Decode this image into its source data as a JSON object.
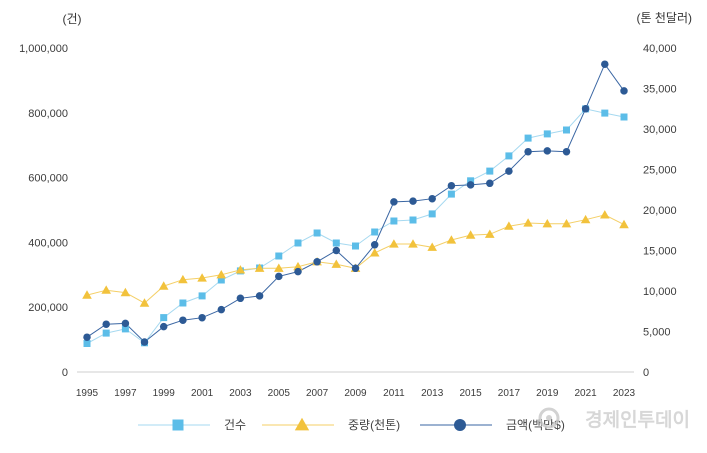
{
  "chart_data": {
    "type": "line",
    "x": [
      1995,
      1996,
      1997,
      1998,
      1999,
      2000,
      2001,
      2002,
      2003,
      2004,
      2005,
      2006,
      2007,
      2008,
      2009,
      2010,
      2011,
      2012,
      2013,
      2014,
      2015,
      2016,
      2017,
      2018,
      2019,
      2020,
      2021,
      2022,
      2023
    ],
    "xlim": [
      1995,
      2023
    ],
    "x_tick_labels": [
      "1995",
      "1997",
      "1999",
      "2001",
      "2003",
      "2005",
      "2007",
      "2009",
      "2011",
      "2013",
      "2015",
      "2017",
      "2019",
      "2021",
      "2023"
    ],
    "y_axis_left": {
      "title": "(건)",
      "range": [
        0,
        1000000
      ],
      "ticks": [
        {
          "value": 0,
          "label": "0"
        },
        {
          "value": 200000,
          "label": "200,000"
        },
        {
          "value": 400000,
          "label": "400,000"
        },
        {
          "value": 600000,
          "label": "600,000"
        },
        {
          "value": 800000,
          "label": "800,000"
        },
        {
          "value": 1000000,
          "label": "1,000,000"
        }
      ]
    },
    "y_axis_right": {
      "title": "(톤 천달러)",
      "range": [
        0,
        40000
      ],
      "ticks": [
        {
          "value": 0,
          "label": "0"
        },
        {
          "value": 5000,
          "label": "5,000"
        },
        {
          "value": 10000,
          "label": "10,000"
        },
        {
          "value": 15000,
          "label": "15,000"
        },
        {
          "value": 20000,
          "label": "20,000"
        },
        {
          "value": 25000,
          "label": "25,000"
        },
        {
          "value": 30000,
          "label": "30,000"
        },
        {
          "value": 35000,
          "label": "35,000"
        },
        {
          "value": 40000,
          "label": "40,000"
        }
      ]
    },
    "grid": false,
    "legend_position": "bottom",
    "series": [
      {
        "name": "건수",
        "axis": "left",
        "marker": "square",
        "color": "#5cbde8",
        "line_color": "#a6d9f0",
        "values": [
          88000,
          120000,
          133000,
          90000,
          168000,
          213000,
          235000,
          284000,
          312000,
          321000,
          358000,
          398000,
          429000,
          398000,
          389000,
          432000,
          466000,
          469000,
          488000,
          549000,
          590000,
          620000,
          667000,
          722000,
          735000,
          747000,
          812000,
          799000,
          787000
        ]
      },
      {
        "name": "중량(천톤)",
        "axis": "right",
        "marker": "triangle",
        "color": "#f2c23c",
        "line_color": "#f4cf66",
        "values": [
          9500,
          10100,
          9800,
          8500,
          10600,
          11400,
          11600,
          12000,
          12600,
          12800,
          12800,
          13000,
          13600,
          13300,
          12800,
          14700,
          15800,
          15800,
          15400,
          16300,
          16900,
          17000,
          18000,
          18400,
          18300,
          18300,
          18800,
          19400,
          18200
        ]
      },
      {
        "name": "금액(백만$)",
        "axis": "right",
        "marker": "circle",
        "color": "#2d5a95",
        "line_color": "#3a66a3",
        "values": [
          4300,
          5900,
          6000,
          3700,
          5600,
          6400,
          6700,
          7700,
          9100,
          9400,
          11800,
          12400,
          13600,
          15000,
          12800,
          15700,
          21000,
          21100,
          21400,
          23000,
          23100,
          23300,
          24800,
          27200,
          27300,
          27200,
          32500,
          38000,
          34700
        ]
      }
    ]
  },
  "watermark": {
    "text": "경제인투데이",
    "icon": "logo-icon"
  }
}
